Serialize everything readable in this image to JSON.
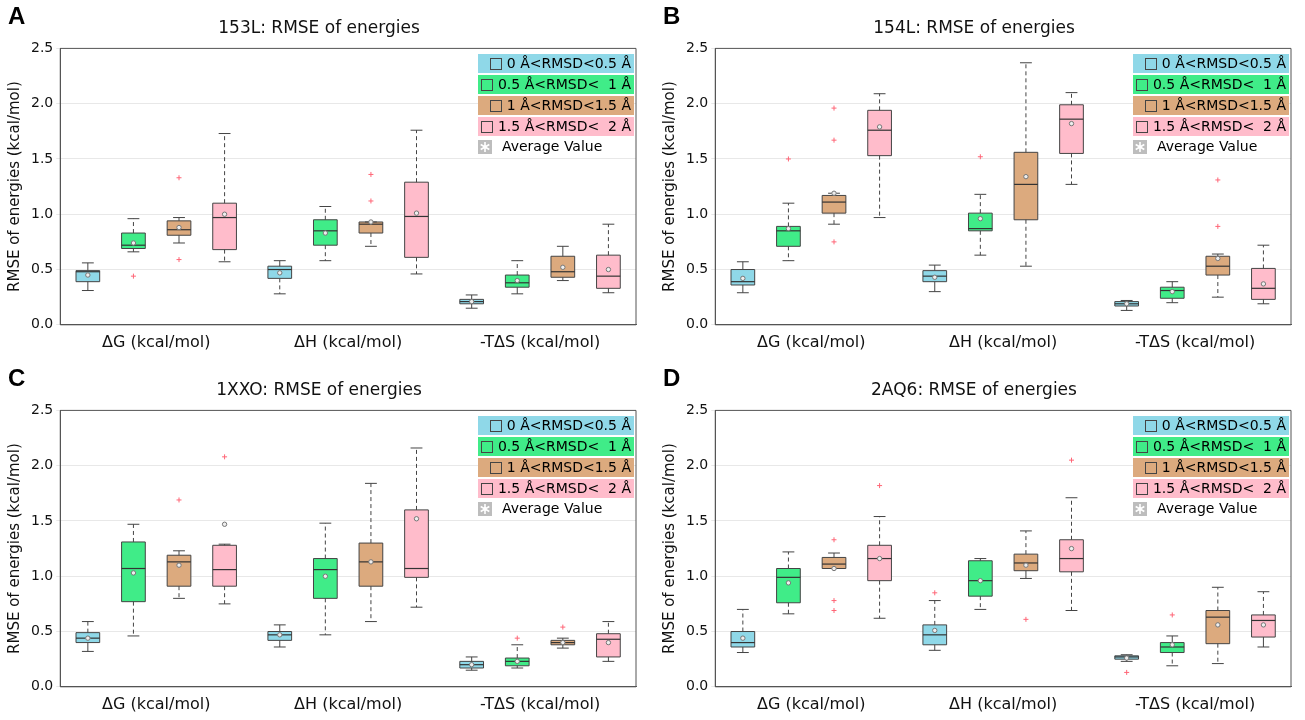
{
  "chart_data": [
    {
      "type": "box",
      "title": "153L: RMSE of energies",
      "ylabel": "RMSE of energies (kcal/mol)",
      "categories": [
        "ΔG (kcal/mol)",
        "ΔH (kcal/mol)",
        "-TΔS (kcal/mol)"
      ],
      "ylim": [
        0,
        2.5
      ],
      "yticks": [
        {
          "value": 0,
          "label": "0.0"
        },
        0.5,
        {
          "value": 1,
          "label": "1.0"
        },
        1.5,
        {
          "value": 2,
          "label": "2.0"
        },
        2.5
      ],
      "grid": "y",
      "legend": "top right",
      "annotations": [
        "A",
        "Average Value"
      ],
      "series": [
        {
          "name": "0 Å<RMSD<0.5 Å",
          "color": "#8fd8e8",
          "boxes": [
            {
              "low": 0.31,
              "q1": 0.39,
              "median": 0.48,
              "q3": 0.49,
              "high": 0.56,
              "mean": 0.45
            },
            {
              "low": 0.28,
              "q1": 0.42,
              "median": 0.5,
              "q3": 0.53,
              "high": 0.58,
              "mean": 0.47
            },
            {
              "low": 0.15,
              "q1": 0.19,
              "median": 0.21,
              "q3": 0.23,
              "high": 0.27,
              "mean": 0.21
            }
          ]
        },
        {
          "name": "0.5 Å<RMSD<  1 Å",
          "color": "#40ec88",
          "boxes": [
            {
              "low": 0.66,
              "q1": 0.69,
              "median": 0.72,
              "q3": 0.83,
              "high": 0.96,
              "mean": 0.74,
              "outliers": [
                0.44
              ]
            },
            {
              "low": 0.58,
              "q1": 0.72,
              "median": 0.85,
              "q3": 0.95,
              "high": 1.07,
              "mean": 0.83
            },
            {
              "low": 0.28,
              "q1": 0.34,
              "median": 0.38,
              "q3": 0.45,
              "high": 0.58,
              "mean": 0.4
            }
          ]
        },
        {
          "name": "1 Å<RMSD<1.5 Å",
          "color": "#dcaa7e",
          "boxes": [
            {
              "low": 0.74,
              "q1": 0.81,
              "median": 0.86,
              "q3": 0.94,
              "high": 0.97,
              "mean": 0.88,
              "outliers": [
                1.33,
                0.59
              ]
            },
            {
              "low": 0.71,
              "q1": 0.83,
              "median": 0.91,
              "q3": 0.93,
              "high": 0.93,
              "mean": 0.93,
              "outliers": [
                1.36,
                1.12
              ]
            },
            {
              "low": 0.4,
              "q1": 0.43,
              "median": 0.48,
              "q3": 0.62,
              "high": 0.71,
              "mean": 0.52
            }
          ]
        },
        {
          "name": "1.5 Å<RMSD<  2 Å",
          "color": "#ffbccb",
          "boxes": [
            {
              "low": 0.57,
              "q1": 0.68,
              "median": 0.97,
              "q3": 1.1,
              "high": 1.73,
              "mean": 1.0
            },
            {
              "low": 0.46,
              "q1": 0.61,
              "median": 0.98,
              "q3": 1.29,
              "high": 1.76,
              "mean": 1.01
            },
            {
              "low": 0.29,
              "q1": 0.33,
              "median": 0.44,
              "q3": 0.63,
              "high": 0.91,
              "mean": 0.5
            }
          ]
        }
      ]
    },
    {
      "type": "box",
      "title": "154L: RMSE of energies",
      "ylabel": "RMSE of energies (kcal/mol)",
      "categories": [
        "ΔG (kcal/mol)",
        "ΔH (kcal/mol)",
        "-TΔS (kcal/mol)"
      ],
      "ylim": [
        0,
        2.5
      ],
      "yticks": [
        {
          "value": 0,
          "label": "0.0"
        },
        0.5,
        {
          "value": 1,
          "label": "1.0"
        },
        1.5,
        {
          "value": 2,
          "label": "2.0"
        },
        2.5
      ],
      "grid": "y",
      "legend": "top right",
      "annotations": [
        "B",
        "Average Value"
      ],
      "series": [
        {
          "name": "0 Å<RMSD<0.5 Å",
          "color": "#8fd8e8",
          "boxes": [
            {
              "low": 0.29,
              "q1": 0.36,
              "median": 0.39,
              "q3": 0.5,
              "high": 0.57,
              "mean": 0.42
            },
            {
              "low": 0.3,
              "q1": 0.39,
              "median": 0.44,
              "q3": 0.49,
              "high": 0.54,
              "mean": 0.43
            },
            {
              "low": 0.13,
              "q1": 0.17,
              "median": 0.19,
              "q3": 0.21,
              "high": 0.22,
              "mean": 0.19
            }
          ]
        },
        {
          "name": "0.5 Å<RMSD<  1 Å",
          "color": "#40ec88",
          "boxes": [
            {
              "low": 0.58,
              "q1": 0.71,
              "median": 0.85,
              "q3": 0.89,
              "high": 1.1,
              "mean": 0.87,
              "outliers": [
                1.5
              ]
            },
            {
              "low": 0.63,
              "q1": 0.85,
              "median": 0.87,
              "q3": 1.01,
              "high": 1.18,
              "mean": 0.96,
              "outliers": [
                1.52
              ]
            },
            {
              "low": 0.2,
              "q1": 0.24,
              "median": 0.31,
              "q3": 0.34,
              "high": 0.39,
              "mean": 0.3
            }
          ]
        },
        {
          "name": "1 Å<RMSD<1.5 Å",
          "color": "#dcaa7e",
          "boxes": [
            {
              "low": 0.91,
              "q1": 1.01,
              "median": 1.11,
              "q3": 1.17,
              "high": 1.19,
              "mean": 1.19,
              "outliers": [
                1.96,
                1.67,
                0.75
              ]
            },
            {
              "low": 0.53,
              "q1": 0.95,
              "median": 1.27,
              "q3": 1.56,
              "high": 2.37,
              "mean": 1.34
            },
            {
              "low": 0.25,
              "q1": 0.45,
              "median": 0.53,
              "q3": 0.62,
              "high": 0.64,
              "mean": 0.6,
              "outliers": [
                1.31,
                0.89
              ]
            }
          ]
        },
        {
          "name": "1.5 Å<RMSD<  2 Å",
          "color": "#ffbccb",
          "boxes": [
            {
              "low": 0.97,
              "q1": 1.53,
              "median": 1.76,
              "q3": 1.94,
              "high": 2.09,
              "mean": 1.79
            },
            {
              "low": 1.27,
              "q1": 1.55,
              "median": 1.86,
              "q3": 1.99,
              "high": 2.1,
              "mean": 1.82
            },
            {
              "low": 0.19,
              "q1": 0.23,
              "median": 0.33,
              "q3": 0.51,
              "high": 0.72,
              "mean": 0.37
            }
          ]
        }
      ]
    },
    {
      "type": "box",
      "title": "1XXO: RMSE of energies",
      "ylabel": "RMSE of energies (kcal/mol)",
      "categories": [
        "ΔG (kcal/mol)",
        "ΔH (kcal/mol)",
        "-TΔS (kcal/mol)"
      ],
      "ylim": [
        0,
        2.5
      ],
      "yticks": [
        {
          "value": 0,
          "label": "0.0"
        },
        0.5,
        {
          "value": 1,
          "label": "1.0"
        },
        1.5,
        {
          "value": 2,
          "label": "2.0"
        },
        2.5
      ],
      "grid": "y",
      "legend": "top right",
      "annotations": [
        "C",
        "Average Value"
      ],
      "series": [
        {
          "name": "0 Å<RMSD<0.5 Å",
          "color": "#8fd8e8",
          "boxes": [
            {
              "low": 0.32,
              "q1": 0.4,
              "median": 0.44,
              "q3": 0.49,
              "high": 0.59,
              "mean": 0.44
            },
            {
              "low": 0.36,
              "q1": 0.42,
              "median": 0.47,
              "q3": 0.5,
              "high": 0.56,
              "mean": 0.47
            },
            {
              "low": 0.15,
              "q1": 0.17,
              "median": 0.2,
              "q3": 0.23,
              "high": 0.27,
              "mean": 0.2
            }
          ]
        },
        {
          "name": "0.5 Å<RMSD<  1 Å",
          "color": "#40ec88",
          "boxes": [
            {
              "low": 0.46,
              "q1": 0.77,
              "median": 1.07,
              "q3": 1.31,
              "high": 1.47,
              "mean": 1.03
            },
            {
              "low": 0.47,
              "q1": 0.8,
              "median": 1.06,
              "q3": 1.16,
              "high": 1.48,
              "mean": 1.0
            },
            {
              "low": 0.17,
              "q1": 0.19,
              "median": 0.23,
              "q3": 0.26,
              "high": 0.38,
              "mean": 0.23,
              "outliers": [
                0.44
              ]
            }
          ]
        },
        {
          "name": "1 Å<RMSD<1.5 Å",
          "color": "#dcaa7e",
          "boxes": [
            {
              "low": 0.8,
              "q1": 0.91,
              "median": 1.13,
              "q3": 1.19,
              "high": 1.23,
              "mean": 1.1,
              "outliers": [
                1.69
              ]
            },
            {
              "low": 0.59,
              "q1": 0.91,
              "median": 1.13,
              "q3": 1.3,
              "high": 1.84,
              "mean": 1.13
            },
            {
              "low": 0.35,
              "q1": 0.38,
              "median": 0.4,
              "q3": 0.42,
              "high": 0.44,
              "mean": 0.4,
              "outliers": [
                0.54
              ]
            }
          ]
        },
        {
          "name": "1.5 Å<RMSD<  2 Å",
          "color": "#ffbccb",
          "boxes": [
            {
              "low": 0.75,
              "q1": 0.91,
              "median": 1.06,
              "q3": 1.28,
              "high": 1.29,
              "mean": 1.47,
              "outliers": [
                2.08
              ]
            },
            {
              "low": 0.72,
              "q1": 0.99,
              "median": 1.07,
              "q3": 1.6,
              "high": 2.16,
              "mean": 1.52
            },
            {
              "low": 0.23,
              "q1": 0.27,
              "median": 0.43,
              "q3": 0.48,
              "high": 0.59,
              "mean": 0.4
            }
          ]
        }
      ]
    },
    {
      "type": "box",
      "title": "2AQ6: RMSE of energies",
      "ylabel": "RMSE of energies (kcal/mol)",
      "categories": [
        "ΔG (kcal/mol)",
        "ΔH (kcal/mol)",
        "-TΔS (kcal/mol)"
      ],
      "ylim": [
        0,
        2.5
      ],
      "yticks": [
        {
          "value": 0,
          "label": "0.0"
        },
        0.5,
        {
          "value": 1,
          "label": "1.0"
        },
        1.5,
        {
          "value": 2,
          "label": "2.0"
        },
        2.5
      ],
      "grid": "y",
      "legend": "top right",
      "annotations": [
        "D",
        "Average Value"
      ],
      "series": [
        {
          "name": "0 Å<RMSD<0.5 Å",
          "color": "#8fd8e8",
          "boxes": [
            {
              "low": 0.31,
              "q1": 0.36,
              "median": 0.4,
              "q3": 0.5,
              "high": 0.7,
              "mean": 0.44
            },
            {
              "low": 0.33,
              "q1": 0.38,
              "median": 0.47,
              "q3": 0.56,
              "high": 0.78,
              "mean": 0.51,
              "outliers": [
                0.85
              ]
            },
            {
              "low": 0.23,
              "q1": 0.25,
              "median": 0.27,
              "q3": 0.28,
              "high": 0.29,
              "mean": 0.26,
              "outliers": [
                0.13
              ]
            }
          ]
        },
        {
          "name": "0.5 Å<RMSD<  1 Å",
          "color": "#40ec88",
          "boxes": [
            {
              "low": 0.66,
              "q1": 0.76,
              "median": 0.99,
              "q3": 1.07,
              "high": 1.22,
              "mean": 0.94
            },
            {
              "low": 0.7,
              "q1": 0.82,
              "median": 0.96,
              "q3": 1.14,
              "high": 1.16,
              "mean": 0.96
            },
            {
              "low": 0.19,
              "q1": 0.31,
              "median": 0.36,
              "q3": 0.4,
              "high": 0.46,
              "mean": 0.38,
              "outliers": [
                0.65
              ]
            }
          ]
        },
        {
          "name": "1 Å<RMSD<1.5 Å",
          "color": "#dcaa7e",
          "boxes": [
            {
              "low": 1.07,
              "q1": 1.07,
              "median": 1.11,
              "q3": 1.17,
              "high": 1.21,
              "mean": 1.07,
              "outliers": [
                1.33,
                0.78,
                0.69
              ]
            },
            {
              "low": 0.98,
              "q1": 1.05,
              "median": 1.12,
              "q3": 1.2,
              "high": 1.41,
              "mean": 1.1,
              "outliers": [
                0.61
              ]
            },
            {
              "low": 0.21,
              "q1": 0.39,
              "median": 0.63,
              "q3": 0.69,
              "high": 0.9,
              "mean": 0.56
            }
          ]
        },
        {
          "name": "1.5 Å<RMSD<  2 Å",
          "color": "#ffbccb",
          "boxes": [
            {
              "low": 0.62,
              "q1": 0.96,
              "median": 1.16,
              "q3": 1.28,
              "high": 1.54,
              "mean": 1.16,
              "outliers": [
                1.82
              ]
            },
            {
              "low": 0.69,
              "q1": 1.04,
              "median": 1.16,
              "q3": 1.33,
              "high": 1.71,
              "mean": 1.25,
              "outliers": [
                2.05
              ]
            },
            {
              "low": 0.36,
              "q1": 0.45,
              "median": 0.6,
              "q3": 0.65,
              "high": 0.86,
              "mean": 0.56
            }
          ]
        }
      ]
    }
  ]
}
